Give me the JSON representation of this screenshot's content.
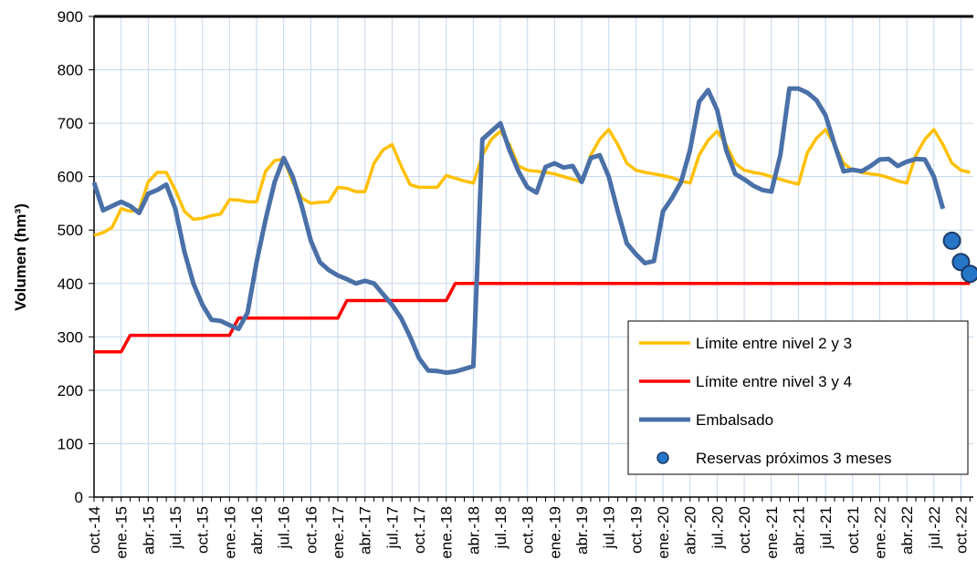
{
  "chart_data": {
    "type": "line",
    "y_label": "Volumen (hm³)",
    "categories": [
      "oct.-14",
      null,
      null,
      "ene.-15",
      null,
      null,
      "abr.-15",
      null,
      null,
      "jul.-15",
      null,
      null,
      "oct.-15",
      null,
      null,
      "ene.-16",
      null,
      null,
      "abr.-16",
      null,
      null,
      "jul.-16",
      null,
      null,
      "oct.-16",
      null,
      null,
      "ene.-17",
      null,
      null,
      "abr.-17",
      null,
      null,
      "jul.-17",
      null,
      null,
      "oct.-17",
      null,
      null,
      "ene.-18",
      null,
      null,
      "abr.-18",
      null,
      null,
      "jul.-18",
      null,
      null,
      "oct.-18",
      null,
      null,
      "ene.-19",
      null,
      null,
      "abr.-19",
      null,
      null,
      "jul.-19",
      null,
      null,
      "oct.-19",
      null,
      null,
      "ene.-20",
      null,
      null,
      "abr.-20",
      null,
      null,
      "jul.-20",
      null,
      null,
      "oct.-20",
      null,
      null,
      "ene.-21",
      null,
      null,
      "abr.-21",
      null,
      null,
      "jul.-21",
      null,
      null,
      "oct.-21",
      null,
      null,
      "ene.-22",
      null,
      null,
      "abr.-22",
      null,
      null,
      "jul.-22",
      null,
      null,
      "oct.-22",
      null
    ],
    "series": [
      {
        "name": "Límite entre nivel 2 y 3",
        "color": "#ffc000",
        "values": [
          490,
          495,
          505,
          540,
          535,
          538,
          590,
          608,
          608,
          575,
          535,
          520,
          522,
          527,
          530,
          557,
          556,
          553,
          553,
          610,
          630,
          633,
          590,
          560,
          550,
          552,
          553,
          580,
          578,
          572,
          572,
          625,
          650,
          660,
          620,
          585,
          580,
          580,
          580,
          602,
          597,
          592,
          588,
          640,
          670,
          685,
          660,
          620,
          612,
          610,
          608,
          605,
          600,
          595,
          590,
          640,
          670,
          688,
          660,
          625,
          612,
          608,
          605,
          602,
          598,
          592,
          588,
          640,
          668,
          685,
          660,
          625,
          612,
          608,
          605,
          600,
          595,
          590,
          586,
          645,
          672,
          688,
          660,
          625,
          612,
          608,
          605,
          603,
          598,
          592,
          588,
          640,
          670,
          688,
          660,
          625,
          612,
          608
        ]
      },
      {
        "name": "Límite entre nivel 3 y 4",
        "color": "#ff0000",
        "values": [
          272,
          272,
          272,
          272,
          303,
          303,
          303,
          303,
          303,
          303,
          303,
          303,
          303,
          303,
          303,
          303,
          335,
          335,
          335,
          335,
          335,
          335,
          335,
          335,
          335,
          335,
          335,
          335,
          368,
          368,
          368,
          368,
          368,
          368,
          368,
          368,
          368,
          368,
          368,
          368,
          400,
          400,
          400,
          400,
          400,
          400,
          400,
          400,
          400,
          400,
          400,
          400,
          400,
          400,
          400,
          400,
          400,
          400,
          400,
          400,
          400,
          400,
          400,
          400,
          400,
          400,
          400,
          400,
          400,
          400,
          400,
          400,
          400,
          400,
          400,
          400,
          400,
          400,
          400,
          400,
          400,
          400,
          400,
          400,
          400,
          400,
          400,
          400,
          400,
          400,
          400,
          400,
          400,
          400,
          400,
          400,
          400,
          400
        ]
      },
      {
        "name": "Embalsado",
        "color": "#4a70a8",
        "values": [
          589,
          537,
          545,
          553,
          545,
          532,
          568,
          575,
          585,
          540,
          460,
          400,
          360,
          332,
          330,
          322,
          315,
          345,
          440,
          520,
          590,
          635,
          600,
          545,
          480,
          440,
          425,
          415,
          408,
          400,
          405,
          400,
          380,
          360,
          335,
          300,
          260,
          237,
          236,
          233,
          235,
          240,
          245,
          670,
          685,
          700,
          650,
          610,
          580,
          570,
          618,
          625,
          617,
          620,
          590,
          635,
          640,
          600,
          535,
          475,
          455,
          438,
          442,
          535,
          560,
          590,
          650,
          740,
          762,
          725,
          650,
          605,
          595,
          583,
          575,
          572,
          640,
          765,
          765,
          757,
          743,
          715,
          660,
          610,
          613,
          610,
          620,
          632,
          633,
          620,
          628,
          633,
          632,
          600,
          540,
          null,
          null,
          null
        ]
      },
      {
        "name": "Reservas próximos 3 meses",
        "color": "#2676c8",
        "marker": "circle",
        "values": [
          null,
          null,
          null,
          null,
          null,
          null,
          null,
          null,
          null,
          null,
          null,
          null,
          null,
          null,
          null,
          null,
          null,
          null,
          null,
          null,
          null,
          null,
          null,
          null,
          null,
          null,
          null,
          null,
          null,
          null,
          null,
          null,
          null,
          null,
          null,
          null,
          null,
          null,
          null,
          null,
          null,
          null,
          null,
          null,
          null,
          null,
          null,
          null,
          null,
          null,
          null,
          null,
          null,
          null,
          null,
          null,
          null,
          null,
          null,
          null,
          null,
          null,
          null,
          null,
          null,
          null,
          null,
          null,
          null,
          null,
          null,
          null,
          null,
          null,
          null,
          null,
          null,
          null,
          null,
          null,
          null,
          null,
          null,
          null,
          null,
          null,
          null,
          null,
          null,
          null,
          null,
          null,
          null,
          null,
          null,
          480,
          440,
          418
        ]
      }
    ],
    "ylim": [
      0,
      900
    ],
    "yticks": [
      0,
      100,
      200,
      300,
      400,
      500,
      600,
      700,
      800,
      900
    ],
    "grid": true,
    "legend": "lower right"
  }
}
